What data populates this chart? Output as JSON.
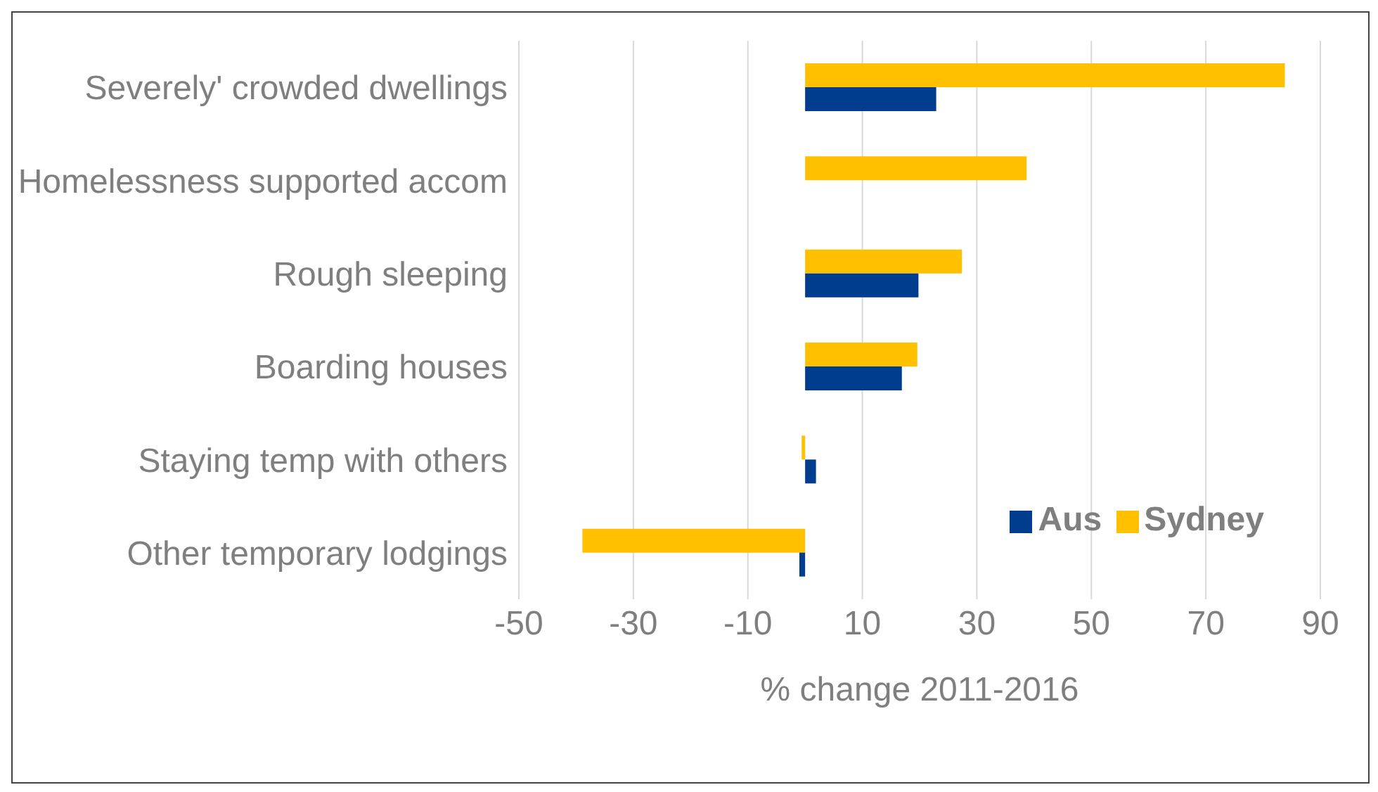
{
  "chart_data": {
    "type": "bar",
    "orientation": "horizontal",
    "xlabel": "% change 2011-2016",
    "categories": [
      "Severely' crowded dwellings",
      "Homelessness supported accom",
      "Rough sleeping",
      "Boarding houses",
      "Staying temp with others",
      "Other temporary lodgings"
    ],
    "series": [
      {
        "name": "Sydney",
        "color": "#ffc000",
        "values": [
          83.8,
          38.7,
          27.4,
          19.6,
          -0.6,
          -38.9
        ]
      },
      {
        "name": "Aus",
        "color": "#003d8f",
        "values": [
          22.9,
          null,
          19.8,
          16.9,
          1.9,
          -1.0
        ]
      }
    ],
    "xlim": [
      -50,
      90
    ],
    "xticks": [
      -50,
      -30,
      -10,
      10,
      30,
      50,
      70,
      90
    ],
    "grid": "x",
    "legend": "right"
  }
}
